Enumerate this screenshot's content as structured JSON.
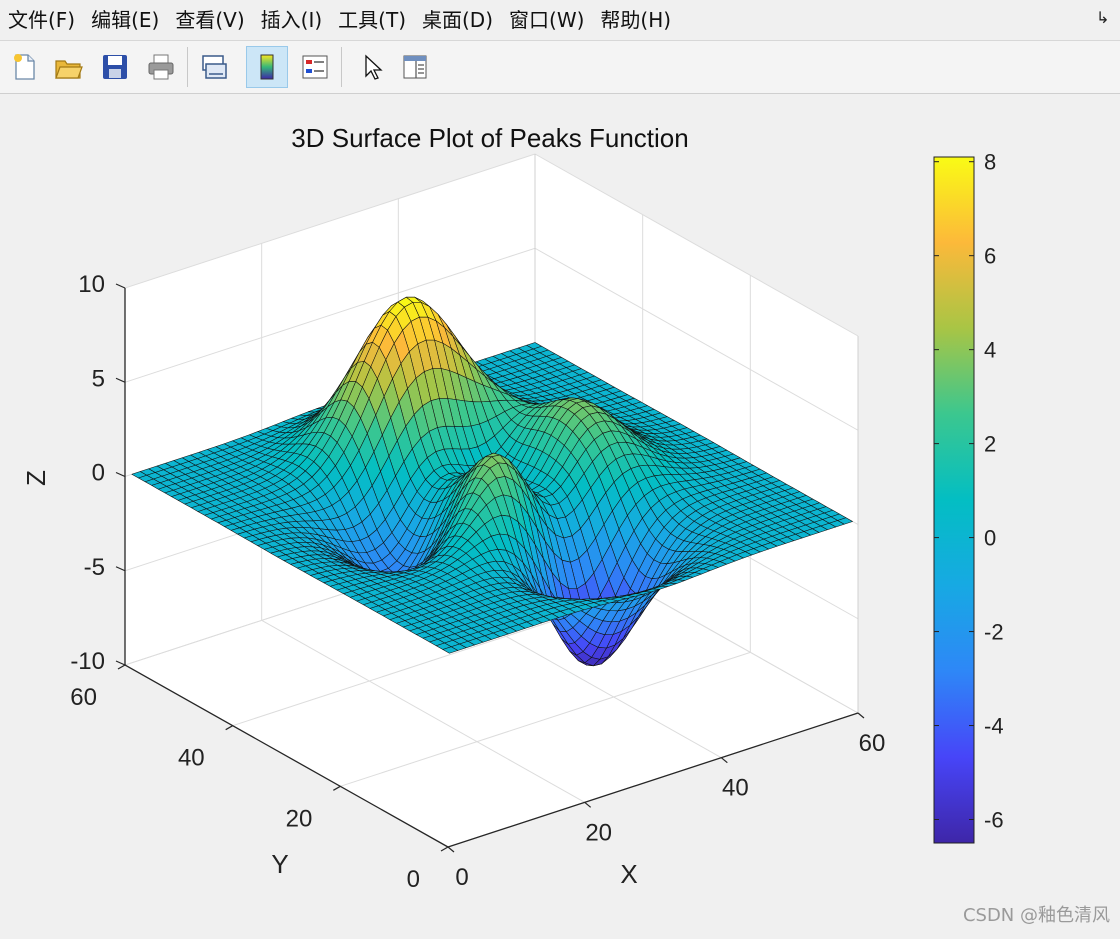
{
  "menu": {
    "items": [
      "文件(F)",
      "编辑(E)",
      "查看(V)",
      "插入(I)",
      "工具(T)",
      "桌面(D)",
      "窗口(W)",
      "帮助(H)"
    ],
    "dock_icon": "undock-arrow-icon"
  },
  "toolbar": {
    "buttons": [
      {
        "icon": "new-file-icon",
        "active": false
      },
      {
        "icon": "open-folder-icon",
        "active": false
      },
      {
        "icon": "save-icon",
        "active": false
      },
      {
        "icon": "print-icon",
        "active": false
      },
      {
        "icon": "link-plot-icon",
        "active": false
      },
      {
        "icon": "colorbar-icon",
        "active": true
      },
      {
        "icon": "legend-icon",
        "active": false
      },
      {
        "icon": "pointer-icon",
        "active": false
      },
      {
        "icon": "property-inspector-icon",
        "active": false
      }
    ]
  },
  "chart_data": {
    "type": "surface",
    "title": "3D Surface Plot of Peaks Function",
    "xlabel": "X",
    "ylabel": "Y",
    "zlabel": "Z",
    "xlim": [
      0,
      60
    ],
    "ylim": [
      0,
      60
    ],
    "zlim": [
      -10,
      10
    ],
    "x_ticks": [
      "0",
      "20",
      "40",
      "60"
    ],
    "y_ticks": [
      "0",
      "20",
      "40",
      "60"
    ],
    "z_ticks": [
      "-10",
      "-5",
      "0",
      "5",
      "10"
    ],
    "function": "peaks",
    "grid_size": 49,
    "z_max": 8.1,
    "z_min": -6.5,
    "colormap": "parula",
    "grid": true,
    "colorbar": {
      "limits": [
        -6.5,
        8.1
      ],
      "ticks": [
        "-6",
        "-4",
        "-2",
        "0",
        "2",
        "4",
        "6",
        "8"
      ]
    }
  },
  "watermark": "CSDN @釉色清风"
}
